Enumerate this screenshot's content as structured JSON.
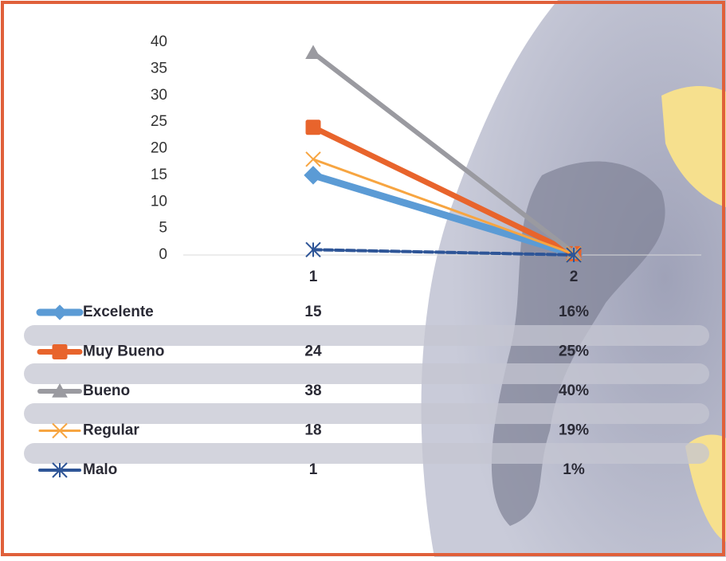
{
  "chart_data": {
    "type": "line",
    "categories": [
      "1",
      "2"
    ],
    "ylim": [
      0,
      40
    ],
    "yticks": [
      0,
      5,
      10,
      15,
      20,
      25,
      30,
      35,
      40
    ],
    "series": [
      {
        "name": "Excelente",
        "color": "#5b9bd5",
        "marker": "diamond",
        "values": [
          15,
          0.16
        ],
        "value_labels": [
          "15",
          "16%"
        ]
      },
      {
        "name": "Muy Bueno",
        "color": "#e8642c",
        "marker": "square",
        "values": [
          24,
          0.25
        ],
        "value_labels": [
          "24",
          "25%"
        ]
      },
      {
        "name": "Bueno",
        "color": "#9a9aa0",
        "marker": "triangle",
        "values": [
          38,
          0.4
        ],
        "value_labels": [
          "38",
          "40%"
        ]
      },
      {
        "name": "Regular",
        "color": "#f7a541",
        "marker": "x",
        "values": [
          18,
          0.19
        ],
        "value_labels": [
          "18",
          "19%"
        ]
      },
      {
        "name": "Malo",
        "color": "#2e5597",
        "marker": "star",
        "values": [
          1,
          0.01
        ],
        "value_labels": [
          "1",
          "1%"
        ]
      }
    ]
  }
}
